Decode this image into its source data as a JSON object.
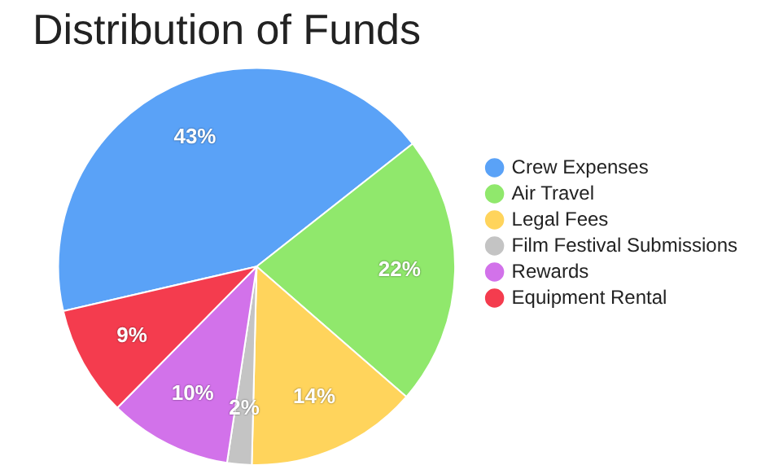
{
  "chart_data": {
    "type": "pie",
    "title": "Distribution of Funds",
    "categories": [
      "Crew Expenses",
      "Air Travel",
      "Legal Fees",
      "Film Festival Submissions",
      "Rewards",
      "Equipment Rental"
    ],
    "values": [
      43,
      22,
      14,
      2,
      10,
      9
    ],
    "value_labels": [
      "43%",
      "22%",
      "14%",
      "2%",
      "10%",
      "9%"
    ],
    "colors": [
      "#5aa2f7",
      "#90e86c",
      "#ffd45c",
      "#c4c4c4",
      "#d272ea",
      "#f43c4e"
    ],
    "legend": "right"
  }
}
